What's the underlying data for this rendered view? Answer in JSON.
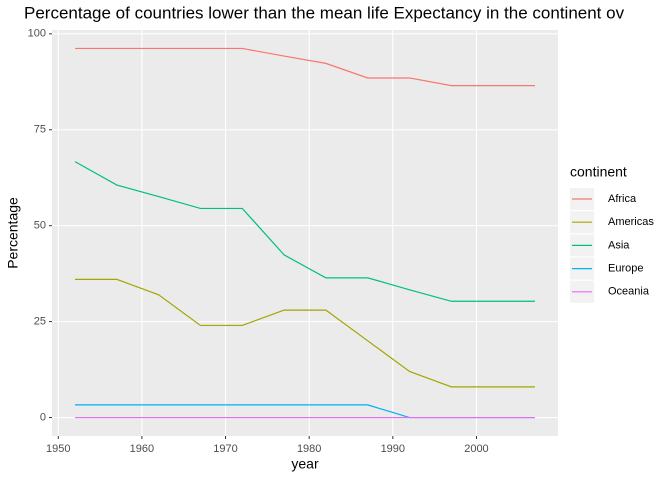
{
  "chart_data": {
    "type": "line",
    "title": "Percentage of countries lower than the mean life Expectancy in the continent ov",
    "x_label": "year",
    "y_label": "Percentage",
    "legend_title": "continent",
    "x": [
      1952,
      1957,
      1962,
      1967,
      1972,
      1977,
      1982,
      1987,
      1992,
      1997,
      2002,
      2007
    ],
    "series": [
      {
        "name": "Africa",
        "color": "#F8766D",
        "values": [
          96.2,
          96.2,
          96.2,
          96.2,
          96.2,
          94.2,
          92.3,
          88.5,
          88.5,
          86.5,
          86.5,
          86.5
        ]
      },
      {
        "name": "Americas",
        "color": "#A3A500",
        "values": [
          36,
          36,
          32,
          24,
          24,
          28,
          28,
          20,
          12,
          8,
          8,
          8
        ]
      },
      {
        "name": "Asia",
        "color": "#00BF7D",
        "values": [
          66.7,
          60.6,
          57.6,
          54.5,
          54.5,
          42.4,
          36.4,
          36.4,
          33.3,
          30.3,
          30.3,
          30.3
        ]
      },
      {
        "name": "Europe",
        "color": "#00B0F6",
        "values": [
          3.3,
          3.3,
          3.3,
          3.3,
          3.3,
          3.3,
          3.3,
          3.3,
          0,
          0,
          0,
          0
        ]
      },
      {
        "name": "Oceania",
        "color": "#E76BF3",
        "values": [
          0,
          0,
          0,
          0,
          0,
          0,
          0,
          0,
          0,
          0,
          0,
          0
        ]
      }
    ],
    "xlim": [
      1949.25,
      2009.75
    ],
    "xticks": [
      1950,
      1960,
      1970,
      1980,
      1990,
      2000
    ],
    "ylim": [
      -4.81,
      101.0
    ],
    "yticks": [
      0,
      25,
      50,
      75,
      100
    ],
    "grid": true,
    "legend": "right"
  }
}
